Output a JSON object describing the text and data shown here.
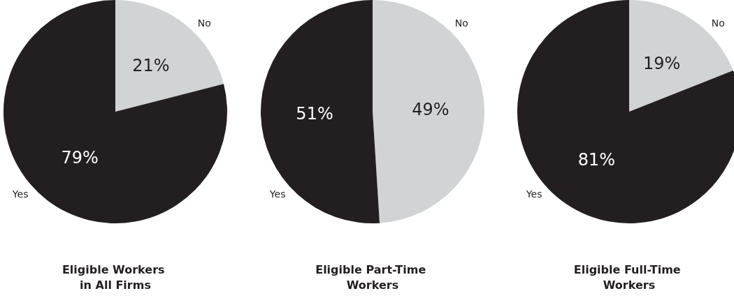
{
  "chart_data": [
    {
      "type": "pie",
      "title": "Eligible Workers in All Firms",
      "categories": [
        "No",
        "Yes"
      ],
      "values": [
        21,
        79
      ],
      "value_labels": [
        "21%",
        "79%"
      ],
      "colors": [
        "#d1d3d4",
        "#231f20"
      ]
    },
    {
      "type": "pie",
      "title": "Eligible Part-Time Workers",
      "categories": [
        "No",
        "Yes"
      ],
      "values": [
        49,
        51
      ],
      "value_labels": [
        "49%",
        "51%"
      ],
      "colors": [
        "#d1d3d4",
        "#231f20"
      ]
    },
    {
      "type": "pie",
      "title": "Eligible Full-Time Workers",
      "categories": [
        "No",
        "Yes"
      ],
      "values": [
        19,
        81
      ],
      "value_labels": [
        "19%",
        "81%"
      ],
      "colors": [
        "#d1d3d4",
        "#231f20"
      ]
    }
  ]
}
